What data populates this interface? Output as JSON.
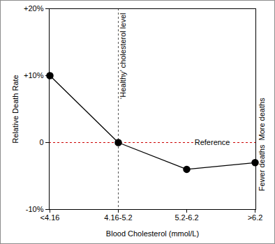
{
  "chart_data": {
    "type": "line",
    "x_label": "Blood Cholesterol (mmol/L)",
    "y_label": "Relative Death Rate",
    "categories": [
      "<4.16",
      "4.16-5.2",
      "5.2-6.2",
      ">6.2"
    ],
    "values": [
      10,
      0,
      -4,
      -3
    ],
    "color": "#000000",
    "marker": "circle",
    "line_style": "solid",
    "ylim": [
      -10,
      20
    ],
    "yticks": [
      {
        "value": -10,
        "label": "-10%"
      },
      0,
      {
        "value": 10,
        "label": "+10%"
      },
      {
        "value": 20,
        "label": "+20%"
      }
    ],
    "grid": false,
    "annotations": [
      {
        "text": "‘Healthy’ cholesterol level",
        "x": "4.16-5.2"
      },
      {
        "text": "Reference",
        "y": 0,
        "color": "#cc0000",
        "above": "More deaths",
        "below": "Fewer deaths"
      }
    ]
  }
}
